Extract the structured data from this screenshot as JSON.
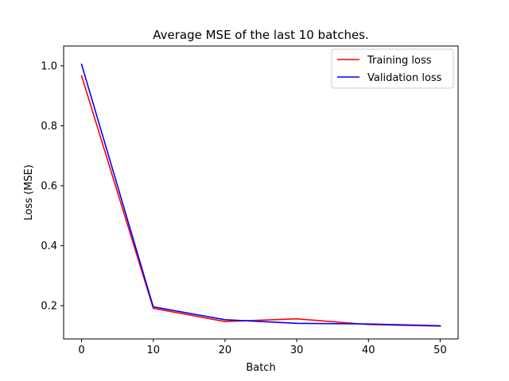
{
  "chart_data": {
    "type": "line",
    "title": "Average MSE of the last 10 batches.",
    "xlabel": "Batch",
    "ylabel": "Loss (MSE)",
    "xlim": [
      -2.5,
      52.5
    ],
    "ylim": [
      0.089,
      1.066
    ],
    "x_ticks": [
      0,
      10,
      20,
      30,
      40,
      50
    ],
    "y_ticks": [
      0.2,
      0.4,
      0.6,
      0.8,
      1.0
    ],
    "x_tick_labels": [
      "0",
      "10",
      "20",
      "30",
      "40",
      "50"
    ],
    "y_tick_labels": [
      "0.2",
      "0.4",
      "0.6",
      "0.8",
      "1.0"
    ],
    "grid": false,
    "legend_position": "top-right",
    "x": [
      0,
      10,
      20,
      30,
      40,
      50
    ],
    "series": [
      {
        "name": "Training loss",
        "color": "#ff0000",
        "values": [
          0.967,
          0.191,
          0.147,
          0.156,
          0.137,
          0.132
        ]
      },
      {
        "name": "Validation loss",
        "color": "#0000ff",
        "values": [
          1.005,
          0.196,
          0.153,
          0.141,
          0.139,
          0.133
        ]
      }
    ]
  }
}
